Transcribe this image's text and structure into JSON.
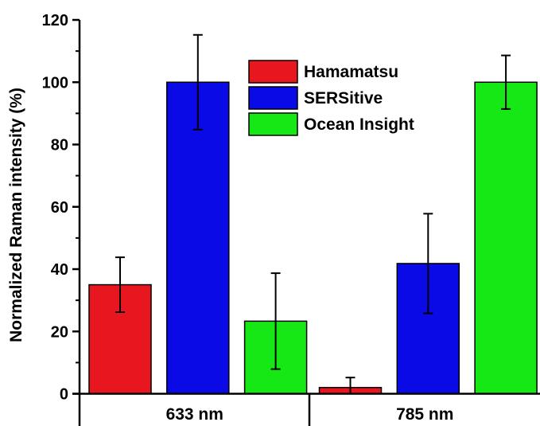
{
  "chart_data": {
    "type": "bar",
    "title": "",
    "xlabel": "",
    "ylabel": "Normalized Raman intensity (%)",
    "ylim": [
      0,
      120
    ],
    "yticks": [
      0,
      20,
      40,
      60,
      80,
      100,
      120
    ],
    "categories": [
      "633 nm",
      "785 nm"
    ],
    "series": [
      {
        "name": "Hamamatsu",
        "color": "#e8161f",
        "values": [
          35,
          2
        ],
        "errors": [
          8.8,
          3.2
        ]
      },
      {
        "name": "SERSitive",
        "color": "#0a0ae6",
        "values": [
          100,
          41.8
        ],
        "errors": [
          15.2,
          16
        ]
      },
      {
        "name": "Ocean Insight",
        "color": "#16e816",
        "values": [
          23.3,
          100
        ],
        "errors": [
          15.4,
          8.6
        ]
      }
    ],
    "legend_position": "top-center",
    "grid": false
  }
}
